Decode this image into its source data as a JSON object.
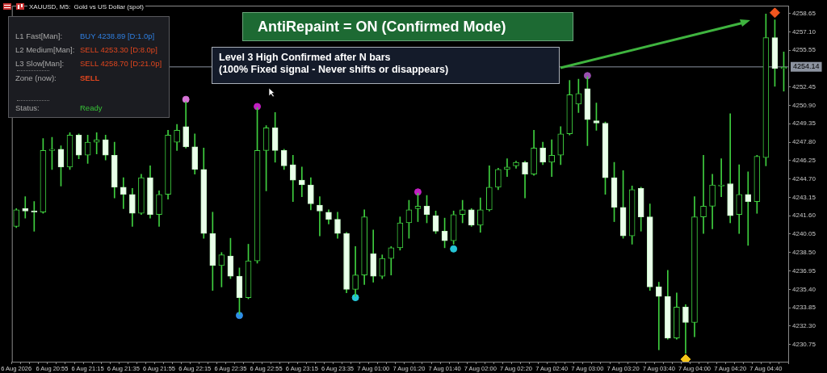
{
  "chart_data": {
    "type": "candlestick",
    "title": "XAUUSD, M5:  Gold vs US Dollar (spot)",
    "categories": [
      "6 Aug 2026",
      null,
      null,
      null,
      "6 Aug 20:55",
      null,
      null,
      null,
      "6 Aug 21:15",
      null,
      null,
      null,
      "6 Aug 21:35",
      null,
      null,
      null,
      "6 Aug 21:55",
      null,
      null,
      null,
      "6 Aug 22:15",
      null,
      null,
      null,
      "6 Aug 22:35",
      null,
      null,
      null,
      "6 Aug 22:55",
      null,
      null,
      null,
      "6 Aug 23:15",
      null,
      null,
      null,
      "6 Aug 23:35",
      null,
      null,
      null,
      "7 Aug 01:00",
      null,
      null,
      null,
      "7 Aug 01:20",
      null,
      null,
      null,
      "7 Aug 01:40",
      null,
      null,
      null,
      "7 Aug 02:00",
      null,
      null,
      null,
      "7 Aug 02:20",
      null,
      null,
      null,
      "7 Aug 02:40",
      null,
      null,
      null,
      "7 Aug 03:00",
      null,
      null,
      null,
      "7 Aug 03:20",
      null,
      null,
      null,
      "7 Aug 03:40",
      null,
      null,
      null,
      "7 Aug 04:00",
      null,
      null,
      null,
      "7 Aug 04:20",
      null,
      null,
      null,
      "7 Aug 04:40",
      null,
      null
    ],
    "ohlc": [
      [
        4240.7,
        4242.2,
        4240.6,
        4242.1
      ],
      [
        4242.2,
        4243.2,
        4241.4,
        4242.0
      ],
      [
        4242.0,
        4242.8,
        4240.3,
        4241.9
      ],
      [
        4241.9,
        4248.1,
        4241.8,
        4247.1
      ],
      [
        4247.1,
        4248.2,
        4245.5,
        4247.2
      ],
      [
        4247.2,
        4247.5,
        4244.1,
        4245.7
      ],
      [
        4245.7,
        4248.6,
        4245.5,
        4248.4
      ],
      [
        4248.4,
        4248.5,
        4246.4,
        4246.7
      ],
      [
        4246.7,
        4248.4,
        4246.0,
        4247.8
      ],
      [
        4247.8,
        4248.6,
        4246.8,
        4248.0
      ],
      [
        4248.0,
        4248.4,
        4246.3,
        4246.7
      ],
      [
        4246.7,
        4247.8,
        4243.1,
        4244.0
      ],
      [
        4244.0,
        4244.8,
        4242.2,
        4243.4
      ],
      [
        4243.4,
        4243.9,
        4240.7,
        4241.8
      ],
      [
        4241.8,
        4245.1,
        4241.7,
        4244.8
      ],
      [
        4244.8,
        4245.8,
        4241.4,
        4241.7
      ],
      [
        4241.7,
        4243.7,
        4240.7,
        4243.4
      ],
      [
        4243.4,
        4248.8,
        4243.0,
        4248.4
      ],
      [
        4247.8,
        4249.3,
        4247.1,
        4248.8
      ],
      [
        4249.1,
        4251.2,
        4247.3,
        4247.4
      ],
      [
        4247.4,
        4248.5,
        4245.1,
        4245.5
      ],
      [
        4245.5,
        4247.3,
        4239.7,
        4240.1
      ],
      [
        4240.1,
        4241.9,
        4235.3,
        4237.4
      ],
      [
        4237.4,
        4238.5,
        4235.6,
        4238.3
      ],
      [
        4238.2,
        4239.7,
        4236.3,
        4236.5
      ],
      [
        4236.5,
        4237.2,
        4233.3,
        4234.7
      ],
      [
        4234.7,
        4239.2,
        4234.6,
        4237.8
      ],
      [
        4237.8,
        4250.7,
        4237.6,
        4247.1
      ],
      [
        4247.1,
        4249.2,
        4243.7,
        4249.0
      ],
      [
        4249.0,
        4250.3,
        4246.1,
        4247.1
      ],
      [
        4247.1,
        4247.2,
        4245.5,
        4245.8
      ],
      [
        4245.9,
        4246.7,
        4242.8,
        4244.6
      ],
      [
        4244.6,
        4245.7,
        4243.2,
        4244.2
      ],
      [
        4244.2,
        4244.8,
        4242.1,
        4242.6
      ],
      [
        4242.5,
        4243.2,
        4239.9,
        4242.0
      ],
      [
        4241.9,
        4242.1,
        4240.9,
        4241.3
      ],
      [
        4241.3,
        4241.9,
        4239.7,
        4240.1
      ],
      [
        4240.1,
        4240.2,
        4235.1,
        4235.4
      ],
      [
        4235.4,
        4239.0,
        4234.8,
        4236.6
      ],
      [
        4236.6,
        4242.1,
        4235.8,
        4241.5
      ],
      [
        4238.4,
        4240.4,
        4236.0,
        4236.5
      ],
      [
        4236.5,
        4238.3,
        4236.3,
        4238.0
      ],
      [
        4238.0,
        4239.0,
        4236.6,
        4238.9
      ],
      [
        4238.9,
        4241.5,
        4238.7,
        4241.0
      ],
      [
        4241.0,
        4242.9,
        4239.7,
        4242.1
      ],
      [
        4242.2,
        4243.5,
        4241.1,
        4242.4
      ],
      [
        4242.4,
        4243.3,
        4241.0,
        4241.7
      ],
      [
        4241.6,
        4242.0,
        4240.1,
        4240.3
      ],
      [
        4240.3,
        4241.4,
        4238.9,
        4239.5
      ],
      [
        4239.5,
        4242.0,
        4239.2,
        4241.7
      ],
      [
        4241.7,
        4242.9,
        4241.0,
        4242.1
      ],
      [
        4242.1,
        4242.2,
        4240.7,
        4240.8
      ],
      [
        4240.8,
        4243.1,
        4240.2,
        4242.1
      ],
      [
        4242.1,
        4245.8,
        4242.0,
        4244.0
      ],
      [
        4244.0,
        4245.6,
        4243.8,
        4245.5
      ],
      [
        4245.5,
        4246.4,
        4244.9,
        4245.7
      ],
      [
        4245.8,
        4246.2,
        4245.6,
        4246.1
      ],
      [
        4246.1,
        4246.2,
        4243.1,
        4245.1
      ],
      [
        4245.1,
        4248.8,
        4245.0,
        4247.3
      ],
      [
        4247.3,
        4247.8,
        4245.9,
        4246.1
      ],
      [
        4246.1,
        4248.0,
        4244.9,
        4246.7
      ],
      [
        4246.7,
        4249.1,
        4245.9,
        4248.5
      ],
      [
        4248.5,
        4253.0,
        4248.4,
        4251.8
      ],
      [
        4251.0,
        4253.1,
        4250.3,
        4251.9
      ],
      [
        4252.3,
        4253.3,
        4247.5,
        4249.7
      ],
      [
        4249.6,
        4251.1,
        4248.8,
        4249.4
      ],
      [
        4249.4,
        4249.5,
        4243.4,
        4244.8
      ],
      [
        4244.8,
        4246.1,
        4241.1,
        4242.3
      ],
      [
        4242.3,
        4245.4,
        4239.7,
        4239.9
      ],
      [
        4239.9,
        4244.1,
        4239.2,
        4243.8
      ],
      [
        4243.9,
        4244.0,
        4240.3,
        4241.5
      ],
      [
        4241.5,
        4242.6,
        4235.3,
        4235.6
      ],
      [
        4235.6,
        4236.0,
        4230.3,
        4234.8
      ],
      [
        4234.8,
        4237.0,
        4231.2,
        4231.3
      ],
      [
        4231.3,
        4235.1,
        4231.2,
        4233.9
      ],
      [
        4233.9,
        4234.1,
        4230.0,
        4232.6
      ],
      [
        4232.6,
        4243.2,
        4231.4,
        4241.5
      ],
      [
        4241.5,
        4246.7,
        4240.1,
        4242.4
      ],
      [
        4242.4,
        4245.1,
        4240.5,
        4244.2
      ],
      [
        4244.1,
        4246.4,
        4243.2,
        4244.2
      ],
      [
        4244.3,
        4250.2,
        4241.0,
        4241.6
      ],
      [
        4241.7,
        4245.9,
        4240.1,
        4243.4
      ],
      [
        4243.4,
        4245.3,
        4239.1,
        4242.8
      ],
      [
        4242.8,
        4246.7,
        4241.8,
        4246.6
      ],
      [
        4246.5,
        4258.6,
        4245.8,
        4256.6
      ],
      [
        4256.6,
        4258.1,
        4252.5,
        4254.0
      ],
      [
        4254.0,
        4255.4,
        4252.1,
        4254.1
      ]
    ],
    "series": [
      {
        "type": "scatter",
        "marker": "circle",
        "color": "#d774d7",
        "values": [
          null,
          null,
          null,
          null,
          null,
          null,
          null,
          null,
          null,
          null,
          null,
          null,
          null,
          null,
          null,
          null,
          null,
          null,
          null,
          4251.4,
          null,
          null,
          null,
          null,
          null,
          null,
          null,
          null,
          null,
          null,
          null,
          null,
          null,
          null,
          null,
          null,
          null,
          null,
          null,
          null,
          null,
          null,
          null,
          null,
          null,
          null,
          null,
          null,
          null,
          null,
          null,
          null,
          null,
          null,
          null,
          null,
          null,
          null,
          null,
          null,
          null,
          null,
          null,
          null,
          null,
          null,
          null,
          null,
          null,
          null,
          null,
          null,
          null,
          null,
          null,
          null,
          null,
          null,
          null,
          null,
          null,
          null,
          null,
          null,
          null,
          null,
          null
        ]
      },
      {
        "type": "scatter",
        "marker": "circle",
        "color": "#2f8ee8",
        "values": [
          null,
          null,
          null,
          null,
          null,
          null,
          null,
          null,
          null,
          null,
          null,
          null,
          null,
          null,
          null,
          null,
          null,
          null,
          null,
          null,
          null,
          null,
          null,
          null,
          null,
          4233.2,
          null,
          null,
          null,
          null,
          null,
          null,
          null,
          null,
          null,
          null,
          null,
          null,
          null,
          null,
          null,
          null,
          null,
          null,
          null,
          null,
          null,
          null,
          null,
          null,
          null,
          null,
          null,
          null,
          null,
          null,
          null,
          null,
          null,
          null,
          null,
          null,
          null,
          null,
          null,
          null,
          null,
          null,
          null,
          null,
          null,
          null,
          null,
          null,
          null,
          null,
          null,
          null,
          null,
          null,
          null,
          null,
          null,
          null,
          null,
          null,
          null
        ]
      },
      {
        "type": "scatter",
        "marker": "circle",
        "color": "#c21fc2",
        "values": [
          null,
          null,
          null,
          null,
          null,
          null,
          null,
          null,
          null,
          null,
          null,
          null,
          null,
          null,
          null,
          null,
          null,
          null,
          null,
          null,
          null,
          null,
          null,
          null,
          null,
          null,
          null,
          4250.8,
          null,
          null,
          null,
          null,
          null,
          null,
          null,
          null,
          null,
          null,
          null,
          null,
          null,
          null,
          null,
          null,
          null,
          4243.6,
          null,
          null,
          null,
          null,
          null,
          null,
          null,
          null,
          null,
          null,
          null,
          null,
          null,
          null,
          null,
          null,
          null,
          null,
          null,
          null,
          null,
          null,
          null,
          null,
          null,
          null,
          null,
          null,
          null,
          null,
          null,
          null,
          null,
          null,
          null,
          null,
          null,
          null,
          null,
          null,
          null
        ]
      },
      {
        "type": "scatter",
        "marker": "circle",
        "color": "#26c6d6",
        "values": [
          null,
          null,
          null,
          null,
          null,
          null,
          null,
          null,
          null,
          null,
          null,
          null,
          null,
          null,
          null,
          null,
          null,
          null,
          null,
          null,
          null,
          null,
          null,
          null,
          null,
          null,
          null,
          null,
          null,
          null,
          null,
          null,
          null,
          null,
          null,
          null,
          null,
          null,
          4234.7,
          null,
          null,
          null,
          null,
          null,
          null,
          null,
          null,
          null,
          null,
          4238.8,
          null,
          null,
          null,
          null,
          null,
          null,
          null,
          null,
          null,
          null,
          null,
          null,
          null,
          null,
          null,
          null,
          null,
          null,
          null,
          null,
          null,
          null,
          null,
          null,
          null,
          null,
          null,
          null,
          null,
          null,
          null,
          null,
          null,
          null,
          null,
          null,
          null
        ]
      },
      {
        "type": "scatter",
        "marker": "circle",
        "color": "#9a4fb0",
        "values": [
          null,
          null,
          null,
          null,
          null,
          null,
          null,
          null,
          null,
          null,
          null,
          null,
          null,
          null,
          null,
          null,
          null,
          null,
          null,
          null,
          null,
          null,
          null,
          null,
          null,
          null,
          null,
          null,
          null,
          null,
          null,
          null,
          null,
          null,
          null,
          null,
          null,
          null,
          null,
          null,
          null,
          null,
          null,
          null,
          null,
          null,
          null,
          null,
          null,
          null,
          null,
          null,
          null,
          null,
          null,
          null,
          null,
          null,
          null,
          null,
          null,
          null,
          null,
          null,
          4253.4,
          null,
          null,
          null,
          null,
          null,
          null,
          null,
          null,
          null,
          null,
          null,
          null,
          null,
          null,
          null,
          null,
          null,
          null,
          null,
          null,
          null,
          null
        ]
      },
      {
        "type": "scatter",
        "marker": "diamond",
        "color": "#f2561f",
        "values": [
          null,
          null,
          null,
          null,
          null,
          null,
          null,
          null,
          null,
          null,
          null,
          null,
          null,
          null,
          null,
          null,
          null,
          null,
          null,
          null,
          null,
          null,
          null,
          null,
          null,
          null,
          null,
          null,
          null,
          null,
          null,
          null,
          null,
          null,
          null,
          null,
          null,
          null,
          null,
          null,
          null,
          null,
          null,
          null,
          null,
          null,
          null,
          null,
          null,
          null,
          null,
          null,
          null,
          null,
          null,
          null,
          null,
          null,
          null,
          null,
          null,
          null,
          null,
          null,
          null,
          null,
          null,
          null,
          null,
          null,
          null,
          null,
          null,
          null,
          null,
          null,
          null,
          null,
          null,
          null,
          null,
          null,
          null,
          null,
          null,
          4258.7,
          null
        ]
      },
      {
        "type": "scatter",
        "marker": "diamond",
        "color": "#f5c518",
        "values": [
          null,
          null,
          null,
          null,
          null,
          null,
          null,
          null,
          null,
          null,
          null,
          null,
          null,
          null,
          null,
          null,
          null,
          null,
          null,
          null,
          null,
          null,
          null,
          null,
          null,
          null,
          null,
          null,
          null,
          null,
          null,
          null,
          null,
          null,
          null,
          null,
          null,
          null,
          null,
          null,
          null,
          null,
          null,
          null,
          null,
          null,
          null,
          null,
          null,
          null,
          null,
          null,
          null,
          null,
          null,
          null,
          null,
          null,
          null,
          null,
          null,
          null,
          null,
          null,
          null,
          null,
          null,
          null,
          null,
          null,
          null,
          null,
          null,
          null,
          null,
          4229.5,
          null,
          null,
          null,
          null,
          null,
          null,
          null,
          null,
          null,
          null,
          null
        ]
      }
    ],
    "ylim": [
      4229.3,
      4259.3
    ],
    "yticks": [
      {
        "value": 4258.65,
        "label": "4258.65"
      },
      {
        "value": 4257.1,
        "label": "4257.10"
      },
      {
        "value": 4255.55,
        "label": "4255.55"
      },
      {
        "value": 4252.45,
        "label": "4252.45"
      },
      {
        "value": 4250.9,
        "label": "4250.90"
      },
      {
        "value": 4249.35,
        "label": "4249.35"
      },
      {
        "value": 4247.8,
        "label": "4247.80"
      },
      {
        "value": 4246.25,
        "label": "4246.25"
      },
      {
        "value": 4244.7,
        "label": "4244.70"
      },
      {
        "value": 4243.15,
        "label": "4243.15"
      },
      {
        "value": 4241.6,
        "label": "4241.60"
      },
      {
        "value": 4240.05,
        "label": "4240.05"
      },
      {
        "value": 4238.5,
        "label": "4238.50"
      },
      {
        "value": 4236.95,
        "label": "4236.95"
      },
      {
        "value": 4235.4,
        "label": "4235.40"
      },
      {
        "value": 4233.85,
        "label": "4233.85"
      },
      {
        "value": 4232.3,
        "label": "4232.30"
      },
      {
        "value": 4230.75,
        "label": "4230.75"
      }
    ],
    "ref_lines": [
      {
        "axis": "y",
        "value": 4254.14,
        "label": "4254.14",
        "color": "#8c93a0"
      }
    ],
    "annotations": [
      "AntiRepaint = ON (Confirmed Mode)",
      "Level 3 High Confirmed after N bars\n(100% Fixed signal - Never shifts or disappears)",
      "L1 Fast[Man]:",
      "BUY  4238.89 [D:1.0p]",
      "L2 Medium[Man]:",
      "SELL 4253.30 [D:8.0p]",
      "L3 Slow[Man]:",
      "SELL 4258.70 [D:21.0p]",
      "Zone (now):",
      "SELL",
      "Status:",
      "Ready"
    ],
    "grid": false
  }
}
